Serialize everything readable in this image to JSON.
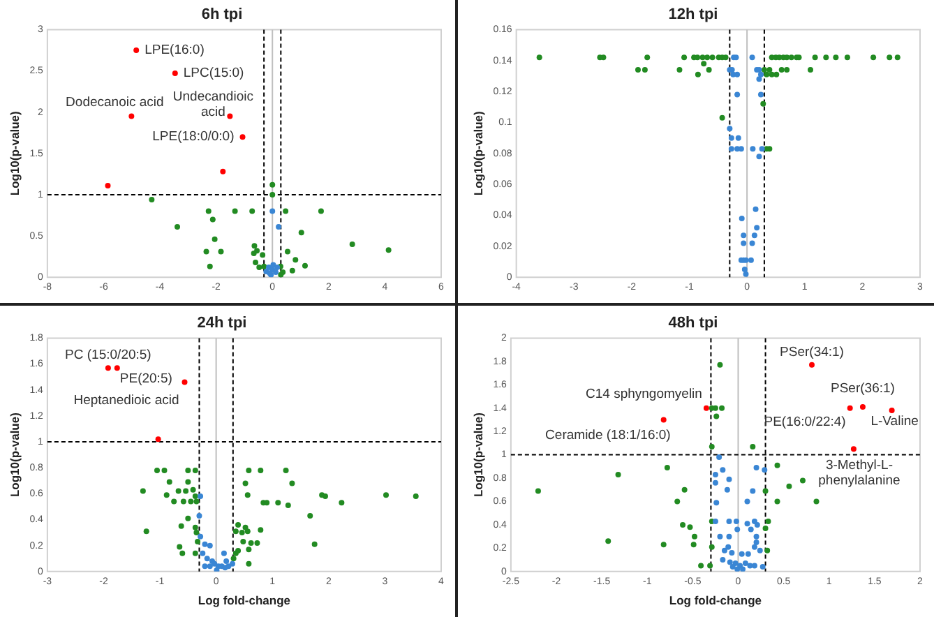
{
  "chart_data": [
    {
      "type": "scatter",
      "title": "6h tpi",
      "ylabel": "Log10(p-value)",
      "marker": "circle",
      "xlim": [
        -8,
        6
      ],
      "xticks": [
        -8,
        -6,
        -4,
        -2,
        0,
        2,
        4,
        6
      ],
      "ylim": [
        0,
        3
      ],
      "yticks": [
        0,
        0.5,
        1,
        1.5,
        2,
        2.5,
        3
      ],
      "series": [
        {
          "color": "#3a86d4",
          "x": [
            0,
            0.22,
            -0.13,
            0,
            0.12,
            -0.05,
            -0.22,
            0.17,
            0.03,
            -0.1
          ],
          "values": [
            0.8,
            0.61,
            0.12,
            0.09,
            0.06,
            0.03,
            0.07,
            0.12,
            0.15,
            0.05
          ]
        },
        {
          "color": "#228b22",
          "x": [
            -4.29,
            -2.27,
            -1.33,
            -0.72,
            -2.12,
            -3.38,
            -2.05,
            -2.35,
            -1.83,
            -2.22,
            0.47,
            1.03,
            1.73,
            2.84,
            4.13,
            0.54,
            0.82,
            1.16,
            0.71,
            0,
            0,
            -0.64,
            -0.55,
            -0.66,
            -0.35,
            -0.6,
            -0.47,
            -0.3,
            0.29,
            0.37,
            0.3
          ],
          "values": [
            0.94,
            0.8,
            0.8,
            0.8,
            0.7,
            0.61,
            0.46,
            0.31,
            0.31,
            0.13,
            0.8,
            0.54,
            0.8,
            0.4,
            0.33,
            0.31,
            0.21,
            0.14,
            0.08,
            1.12,
            1,
            0.38,
            0.32,
            0.29,
            0.27,
            0.18,
            0.12,
            0.13,
            0.13,
            0.06,
            0.03
          ]
        },
        {
          "color": "#ff0000",
          "x": [
            -4.84,
            -3.46,
            -5.01,
            -1.51,
            -1.06,
            -1.76,
            -5.85
          ],
          "values": [
            2.75,
            2.47,
            1.95,
            1.95,
            1.7,
            1.28,
            1.11
          ]
        }
      ],
      "ref_lines": [
        {
          "axis": "x",
          "value": 0,
          "color": "#bfbfbf",
          "line_style": "solid"
        },
        {
          "axis": "x",
          "value": -0.3,
          "color": "#000000",
          "line_style": "dashed"
        },
        {
          "axis": "x",
          "value": 0.3,
          "color": "#000000",
          "line_style": "dashed"
        },
        {
          "axis": "y",
          "value": 1,
          "color": "#000000",
          "line_style": "dashed"
        }
      ],
      "annotations": [
        {
          "text": "LPE(16:0)",
          "x": -4.84,
          "y": 2.75
        },
        {
          "text": "LPC(15:0)",
          "x": -3.46,
          "y": 2.47
        },
        {
          "text": "Dodecanoic acid",
          "x": -5.01,
          "y": 1.95
        },
        {
          "text": "Undecandioic acid",
          "x": -1.51,
          "y": 1.95
        },
        {
          "text": "LPE(18:0/0:0)",
          "x": -1.06,
          "y": 1.7
        }
      ]
    },
    {
      "type": "scatter",
      "title": "12h tpi",
      "ylabel": "Log10(p-value)",
      "marker": "circle",
      "xlim": [
        -4,
        3
      ],
      "xticks": [
        -4,
        -3,
        -2,
        -1,
        0,
        1,
        2,
        3
      ],
      "ylim": [
        0,
        0.16
      ],
      "yticks": [
        0,
        0.02,
        0.04,
        0.06,
        0.08,
        0.1,
        0.12,
        0.14,
        0.16
      ],
      "series": [
        {
          "color": "#3a86d4",
          "x": [
            -0.23,
            -0.19,
            0.09,
            -0.3,
            -0.26,
            0.17,
            0.21,
            -0.24,
            -0.17,
            0.24,
            -0.17,
            0.24,
            0.21,
            -0.3,
            -0.27,
            -0.15,
            -0.27,
            -0.17,
            -0.1,
            0.1,
            0.26,
            0.21,
            -0.09,
            0.15,
            0.17,
            -0.06,
            0.13,
            -0.06,
            0.09,
            -0.1,
            -0.06,
            -0.02,
            0.07,
            -0.04,
            -0.02
          ],
          "values": [
            0.142,
            0.142,
            0.142,
            0.134,
            0.134,
            0.134,
            0.134,
            0.131,
            0.131,
            0.131,
            0.118,
            0.118,
            0.128,
            0.096,
            0.09,
            0.09,
            0.083,
            0.083,
            0.083,
            0.083,
            0.083,
            0.078,
            0.038,
            0.044,
            0.032,
            0.027,
            0.027,
            0.022,
            0.022,
            0.011,
            0.011,
            0.011,
            0.011,
            0.005,
            0.002
          ]
        },
        {
          "color": "#228b22",
          "x": [
            -3.6,
            -2.55,
            -2.49,
            -1.73,
            -1.09,
            -0.92,
            -0.86,
            -0.77,
            -0.69,
            -0.6,
            -0.49,
            -0.43,
            -0.37,
            0.43,
            0.5,
            0.56,
            0.63,
            0.69,
            0.77,
            0.86,
            0.9,
            1.18,
            1.37,
            1.54,
            1.74,
            2.19,
            2.47,
            2.61,
            -1.89,
            -1.77,
            -1.17,
            -0.66,
            0.3,
            0.39,
            0.6,
            0.69,
            1.1,
            -0.85,
            0.34,
            0.43,
            0.51,
            -0.75,
            -0.43,
            0.28,
            0.34,
            0.39
          ],
          "values": [
            0.142,
            0.142,
            0.142,
            0.142,
            0.142,
            0.142,
            0.142,
            0.142,
            0.142,
            0.142,
            0.142,
            0.142,
            0.142,
            0.142,
            0.142,
            0.142,
            0.142,
            0.142,
            0.142,
            0.142,
            0.142,
            0.142,
            0.142,
            0.142,
            0.142,
            0.142,
            0.142,
            0.142,
            0.134,
            0.134,
            0.134,
            0.134,
            0.134,
            0.134,
            0.134,
            0.134,
            0.134,
            0.131,
            0.131,
            0.131,
            0.131,
            0.138,
            0.103,
            0.112,
            0.083,
            0.083
          ]
        }
      ],
      "ref_lines": [
        {
          "axis": "x",
          "value": 0,
          "color": "#bfbfbf",
          "line_style": "solid"
        },
        {
          "axis": "x",
          "value": -0.3,
          "color": "#000000",
          "line_style": "dashed"
        },
        {
          "axis": "x",
          "value": 0.3,
          "color": "#000000",
          "line_style": "dashed"
        }
      ]
    },
    {
      "type": "scatter",
      "title": "24h tpi",
      "xlabel": "Log fold-change",
      "ylabel": "Log10(p-value)",
      "marker": "circle",
      "xlim": [
        -3,
        4
      ],
      "xticks": [
        -3,
        -2,
        -1,
        0,
        1,
        2,
        3,
        4
      ],
      "ylim": [
        0,
        1.8
      ],
      "yticks": [
        0,
        0.2,
        0.4,
        0.6,
        0.8,
        1,
        1.2,
        1.4,
        1.6,
        1.8
      ],
      "series": [
        {
          "color": "#3a86d4",
          "x": [
            -0.28,
            -0.3,
            -0.28,
            -0.2,
            -0.11,
            -0.24,
            -0.16,
            -0.07,
            -0.03,
            0.04,
            0.14,
            0.18,
            0.22,
            -0.11,
            0.01,
            0.1,
            0.29,
            -0.2,
            0.16
          ],
          "values": [
            0.58,
            0.43,
            0.27,
            0.21,
            0.2,
            0.14,
            0.1,
            0.08,
            0.06,
            0.04,
            0.14,
            0.08,
            0.04,
            0.04,
            0.01,
            0.04,
            0.06,
            0.04,
            0.03
          ]
        },
        {
          "color": "#228b22",
          "x": [
            -1.3,
            -1.24,
            -1.05,
            -0.92,
            -0.83,
            -0.88,
            -0.75,
            -0.67,
            -0.58,
            -0.54,
            -0.5,
            -0.5,
            -0.37,
            -0.41,
            -0.45,
            -0.35,
            -0.37,
            -0.5,
            -0.62,
            -0.65,
            -0.6,
            -0.37,
            -0.35,
            -0.33,
            -0.37,
            0.35,
            0.39,
            0.46,
            0.52,
            0.56,
            0.48,
            0.35,
            0.39,
            0.58,
            0.62,
            0.31,
            0.58,
            0.52,
            0.58,
            0.79,
            0.56,
            0.84,
            0.9,
            1.1,
            1.24,
            1.35,
            1.28,
            0.79,
            1.67,
            1.75,
            1.88,
            1.94,
            2.23,
            3.02,
            3.55,
            0.73
          ],
          "values": [
            0.62,
            0.31,
            0.78,
            0.78,
            0.69,
            0.59,
            0.54,
            0.62,
            0.54,
            0.62,
            0.69,
            0.78,
            0.78,
            0.63,
            0.54,
            0.54,
            0.58,
            0.41,
            0.35,
            0.19,
            0.14,
            0.34,
            0.3,
            0.23,
            0.14,
            0.31,
            0.36,
            0.3,
            0.34,
            0.31,
            0.23,
            0.14,
            0.16,
            0.17,
            0.22,
            0.1,
            0.06,
            0.68,
            0.78,
            0.78,
            0.59,
            0.53,
            0.53,
            0.53,
            0.78,
            0.68,
            0.51,
            0.32,
            0.43,
            0.21,
            0.59,
            0.58,
            0.53,
            0.59,
            0.58,
            0.22
          ]
        },
        {
          "color": "#ff0000",
          "x": [
            -1.92,
            -1.76,
            -0.56,
            -1.03
          ],
          "values": [
            1.57,
            1.57,
            1.46,
            1.02
          ]
        }
      ],
      "ref_lines": [
        {
          "axis": "x",
          "value": 0,
          "color": "#bfbfbf",
          "line_style": "solid"
        },
        {
          "axis": "x",
          "value": -0.3,
          "color": "#000000",
          "line_style": "dashed"
        },
        {
          "axis": "x",
          "value": 0.3,
          "color": "#000000",
          "line_style": "dashed"
        },
        {
          "axis": "y",
          "value": 1,
          "color": "#000000",
          "line_style": "dashed"
        }
      ],
      "annotations": [
        {
          "text": "PC (15:0/20:5)",
          "x": -1.92,
          "y": 1.57
        },
        {
          "text": "PE(20:5)",
          "x": -1.76,
          "y": 1.57
        },
        {
          "text": "Heptanedioic acid",
          "x": -0.56,
          "y": 1.46
        }
      ]
    },
    {
      "type": "scatter",
      "title": "48h tpi",
      "xlabel": "Log fold-change",
      "ylabel": "Log10(p-value)",
      "marker": "circle",
      "xlim": [
        -2.5,
        2
      ],
      "xticks": [
        -2.5,
        -2,
        -1.5,
        -1,
        -0.5,
        0,
        0.5,
        1,
        1.5,
        2
      ],
      "ylim": [
        0,
        2
      ],
      "yticks": [
        0,
        0.2,
        0.4,
        0.6,
        0.8,
        1,
        1.2,
        1.4,
        1.6,
        1.8,
        2
      ],
      "series": [
        {
          "color": "#3a86d4",
          "x": [
            -0.21,
            -0.17,
            -0.25,
            -0.1,
            -0.25,
            -0.12,
            -0.24,
            0.2,
            0.29,
            0.16,
            0.1,
            -0.25,
            -0.1,
            -0.02,
            0.1,
            0.18,
            0.21,
            -0.2,
            -0.1,
            -0.01,
            0.14,
            0.2,
            0.2,
            0.18,
            -0.15,
            -0.11,
            -0.07,
            0.04,
            0.11,
            0.24,
            -0.17,
            -0.09,
            -0.03,
            0.02,
            0.08,
            0.13,
            0.18,
            -0.01,
            0.05,
            -0.06,
            0.27
          ],
          "values": [
            0.98,
            0.87,
            0.83,
            0.79,
            0.76,
            0.7,
            0.59,
            0.89,
            0.87,
            0.69,
            0.6,
            0.43,
            0.43,
            0.43,
            0.41,
            0.43,
            0.4,
            0.3,
            0.3,
            0.36,
            0.36,
            0.3,
            0.25,
            0.21,
            0.18,
            0.21,
            0.16,
            0.15,
            0.15,
            0.18,
            0.1,
            0.08,
            0.07,
            0.05,
            0.07,
            0.05,
            0.05,
            0.02,
            0.02,
            0.04,
            0.04
          ]
        },
        {
          "color": "#228b22",
          "x": [
            -0.2,
            -0.29,
            -0.25,
            -0.18,
            -0.24,
            -0.29,
            0.16,
            -2.2,
            -1.32,
            -0.78,
            -0.59,
            -0.67,
            0.43,
            0.56,
            0.71,
            0.86,
            0.43,
            0.3,
            -0.82,
            -1.43,
            -0.49,
            -0.61,
            -0.53,
            -0.48,
            -0.29,
            0.33,
            0.3,
            0.32,
            -0.41,
            -0.31,
            -0.29
          ],
          "values": [
            1.77,
            1.4,
            1.4,
            1.4,
            1.33,
            1.07,
            1.07,
            0.69,
            0.83,
            0.89,
            0.7,
            0.6,
            0.91,
            0.73,
            0.78,
            0.6,
            0.6,
            0.69,
            0.23,
            0.26,
            0.23,
            0.4,
            0.38,
            0.3,
            0.43,
            0.43,
            0.37,
            0.18,
            0.05,
            0.05,
            0.21
          ]
        },
        {
          "color": "#ff0000",
          "x": [
            0.81,
            1.23,
            1.37,
            1.69,
            1.27,
            -0.82,
            -0.35
          ],
          "values": [
            1.77,
            1.4,
            1.41,
            1.38,
            1.05,
            1.3,
            1.4
          ]
        }
      ],
      "ref_lines": [
        {
          "axis": "x",
          "value": 0,
          "color": "#bfbfbf",
          "line_style": "solid"
        },
        {
          "axis": "x",
          "value": -0.3,
          "color": "#000000",
          "line_style": "dashed"
        },
        {
          "axis": "x",
          "value": 0.3,
          "color": "#000000",
          "line_style": "dashed"
        },
        {
          "axis": "y",
          "value": 1,
          "color": "#000000",
          "line_style": "dashed"
        }
      ],
      "annotations": [
        {
          "text": "PSer(34:1)",
          "x": 0.81,
          "y": 1.77
        },
        {
          "text": "C14 sphyngomyelin",
          "x": -0.35,
          "y": 1.4
        },
        {
          "text": "Ceramide (18:1/16:0)",
          "x": -0.82,
          "y": 1.3
        },
        {
          "text": "PSer(36:1)",
          "x": 1.37,
          "y": 1.41
        },
        {
          "text": "PE(16:0/22:4)",
          "x": 1.23,
          "y": 1.4
        },
        {
          "text": "L-Valine",
          "x": 1.69,
          "y": 1.38
        },
        {
          "text": "3-Methyl-L-phenylalanine",
          "x": 1.27,
          "y": 1.05
        }
      ]
    }
  ]
}
